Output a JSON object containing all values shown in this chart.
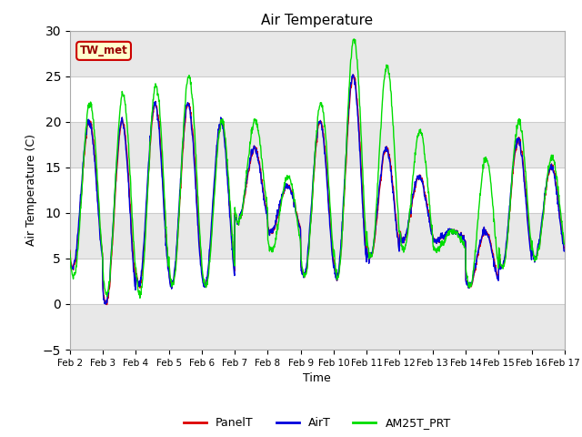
{
  "title": "Air Temperature",
  "ylabel": "Air Temperature (C)",
  "xlabel": "Time",
  "ylim": [
    -5,
    30
  ],
  "yticks": [
    -5,
    0,
    5,
    10,
    15,
    20,
    25,
    30
  ],
  "fig_bg_color": "#ffffff",
  "plot_bg_color": "#ffffff",
  "band_color": "#e8e8e8",
  "label_box_text": "TW_met",
  "label_box_bg": "#ffffcc",
  "label_box_edge": "#cc0000",
  "label_box_color": "#990000",
  "line_colors": {
    "PanelT": "#dd0000",
    "AirT": "#0000dd",
    "AM25T_PRT": "#00dd00"
  },
  "legend_labels": [
    "PanelT",
    "AirT",
    "AM25T_PRT"
  ],
  "x_tick_labels": [
    "Feb 2",
    "Feb 3",
    "Feb 4",
    "Feb 5",
    "Feb 6",
    "Feb 7",
    "Feb 8",
    "Feb 9",
    "Feb 10",
    "Feb 11",
    "Feb 12",
    "Feb 13",
    "Feb 14",
    "Feb 15",
    "Feb 16",
    "Feb 17"
  ],
  "n_points": 1440,
  "days": 15,
  "day_profiles": [
    {
      "max": 20,
      "min": 4,
      "green_max": 22,
      "green_min": 3
    },
    {
      "max": 20,
      "min": 0,
      "green_max": 23,
      "green_min": 1
    },
    {
      "max": 22,
      "min": 2,
      "green_max": 24,
      "green_min": 1
    },
    {
      "max": 22,
      "min": 2,
      "green_max": 25,
      "green_min": 2
    },
    {
      "max": 20,
      "min": 2,
      "green_max": 20,
      "green_min": 2
    },
    {
      "max": 17,
      "min": 9,
      "green_max": 20,
      "green_min": 9
    },
    {
      "max": 13,
      "min": 8,
      "green_max": 14,
      "green_min": 6
    },
    {
      "max": 20,
      "min": 3,
      "green_max": 22,
      "green_min": 3
    },
    {
      "max": 25,
      "min": 3,
      "green_max": 29,
      "green_min": 3
    },
    {
      "max": 17,
      "min": 5,
      "green_max": 26,
      "green_min": 5
    },
    {
      "max": 14,
      "min": 7,
      "green_max": 19,
      "green_min": 6
    },
    {
      "max": 8,
      "min": 7,
      "green_max": 8,
      "green_min": 6
    },
    {
      "max": 8,
      "min": 2,
      "green_max": 16,
      "green_min": 2
    },
    {
      "max": 18,
      "min": 4,
      "green_max": 20,
      "green_min": 4
    },
    {
      "max": 15,
      "min": 5,
      "green_max": 16,
      "green_min": 5
    }
  ]
}
